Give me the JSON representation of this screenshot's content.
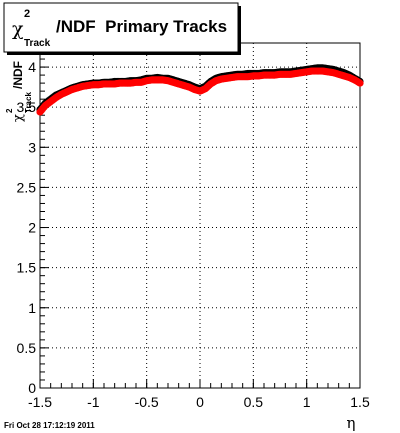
{
  "chart_data": {
    "type": "scatter",
    "title": {
      "symbol": "χ",
      "superscript": "2",
      "subscript": "Track",
      "rest": "/NDF  Primary Tracks"
    },
    "ylabel": {
      "symbol": "χ",
      "superscript": "2",
      "subscript": "Track",
      "rest": "/NDF"
    },
    "xlabel": "η",
    "xlim": [
      -1.5,
      1.5
    ],
    "ylim": [
      0,
      4.3
    ],
    "x_ticks": [
      "-1.5",
      "-1",
      "-0.5",
      "0",
      "0.5",
      "1",
      "1.5"
    ],
    "y_ticks": [
      "0",
      "0.5",
      "1",
      "1.5",
      "2",
      "2.5",
      "3",
      "3.5",
      "4"
    ],
    "grid": true,
    "series": [
      {
        "color": "#000000",
        "x": [
          -1.5,
          -1.45,
          -1.4,
          -1.35,
          -1.3,
          -1.25,
          -1.2,
          -1.15,
          -1.1,
          -1.05,
          -1.0,
          -0.95,
          -0.9,
          -0.85,
          -0.8,
          -0.75,
          -0.7,
          -0.65,
          -0.6,
          -0.55,
          -0.5,
          -0.45,
          -0.4,
          -0.35,
          -0.3,
          -0.25,
          -0.2,
          -0.15,
          -0.1,
          -0.05,
          0.0,
          0.05,
          0.1,
          0.15,
          0.2,
          0.25,
          0.3,
          0.35,
          0.4,
          0.45,
          0.5,
          0.55,
          0.6,
          0.65,
          0.7,
          0.75,
          0.8,
          0.85,
          0.9,
          0.95,
          1.0,
          1.05,
          1.1,
          1.15,
          1.2,
          1.25,
          1.3,
          1.35,
          1.4,
          1.45,
          1.5
        ],
        "y": [
          3.47,
          3.55,
          3.6,
          3.65,
          3.68,
          3.71,
          3.74,
          3.76,
          3.78,
          3.79,
          3.8,
          3.8,
          3.81,
          3.81,
          3.82,
          3.82,
          3.82,
          3.83,
          3.83,
          3.84,
          3.86,
          3.86,
          3.87,
          3.86,
          3.86,
          3.84,
          3.82,
          3.8,
          3.78,
          3.75,
          3.73,
          3.76,
          3.82,
          3.86,
          3.88,
          3.89,
          3.9,
          3.91,
          3.91,
          3.92,
          3.92,
          3.92,
          3.93,
          3.93,
          3.93,
          3.94,
          3.94,
          3.94,
          3.95,
          3.96,
          3.97,
          3.98,
          3.99,
          3.99,
          3.98,
          3.97,
          3.95,
          3.93,
          3.9,
          3.86,
          3.82
        ]
      },
      {
        "color": "#ff0000",
        "x": [
          -1.5,
          -1.45,
          -1.4,
          -1.35,
          -1.3,
          -1.25,
          -1.2,
          -1.15,
          -1.1,
          -1.05,
          -1.0,
          -0.95,
          -0.9,
          -0.85,
          -0.8,
          -0.75,
          -0.7,
          -0.65,
          -0.6,
          -0.55,
          -0.5,
          -0.45,
          -0.4,
          -0.35,
          -0.3,
          -0.25,
          -0.2,
          -0.15,
          -0.1,
          -0.05,
          0.0,
          0.05,
          0.1,
          0.15,
          0.2,
          0.25,
          0.3,
          0.35,
          0.4,
          0.45,
          0.5,
          0.55,
          0.6,
          0.65,
          0.7,
          0.75,
          0.8,
          0.85,
          0.9,
          0.95,
          1.0,
          1.05,
          1.1,
          1.15,
          1.2,
          1.25,
          1.3,
          1.35,
          1.4,
          1.45,
          1.5
        ],
        "y": [
          3.44,
          3.52,
          3.57,
          3.62,
          3.66,
          3.69,
          3.72,
          3.74,
          3.76,
          3.77,
          3.78,
          3.78,
          3.79,
          3.79,
          3.79,
          3.8,
          3.8,
          3.8,
          3.81,
          3.81,
          3.83,
          3.84,
          3.84,
          3.84,
          3.83,
          3.81,
          3.79,
          3.77,
          3.75,
          3.72,
          3.7,
          3.73,
          3.79,
          3.83,
          3.85,
          3.86,
          3.87,
          3.88,
          3.88,
          3.88,
          3.89,
          3.89,
          3.9,
          3.9,
          3.9,
          3.91,
          3.91,
          3.91,
          3.92,
          3.93,
          3.94,
          3.95,
          3.95,
          3.95,
          3.94,
          3.93,
          3.91,
          3.89,
          3.87,
          3.84,
          3.8
        ]
      }
    ]
  },
  "footer": {
    "timestamp": "Fri Oct 28 17:12:19 2011"
  }
}
